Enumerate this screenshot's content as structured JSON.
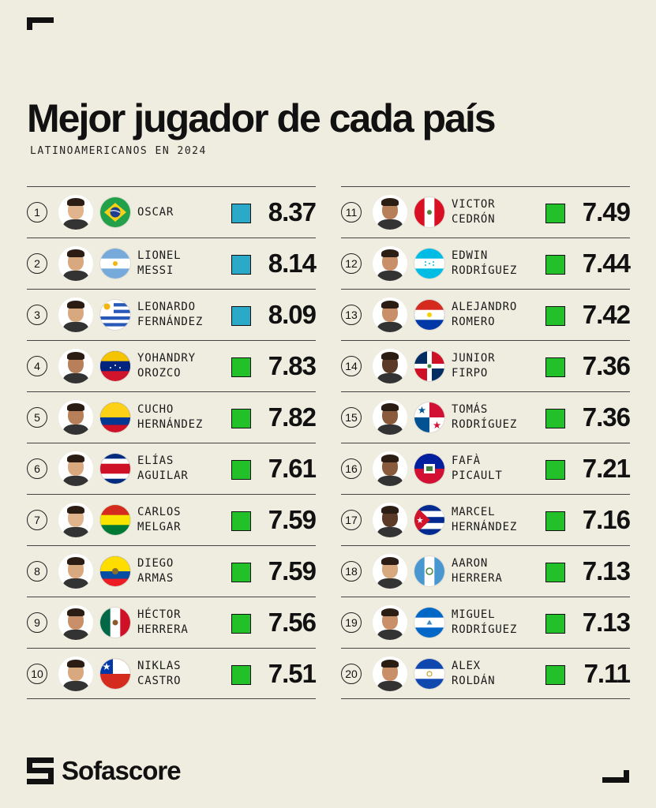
{
  "header": {
    "title": "Mejor jugador de cada país",
    "subtitle": "LATINOAMERICANOS EN 2024"
  },
  "brand": {
    "name": "Sofascore"
  },
  "colors": {
    "background": "#efece0",
    "rating_blue": "#2aa9c9",
    "rating_green": "#22c12a"
  },
  "players": [
    {
      "rank": "1",
      "name": "OSCAR",
      "rating": "8.37",
      "tier": "blue",
      "flag": "brazil-flag-icon",
      "country": "brazil"
    },
    {
      "rank": "2",
      "name": "LIONEL\nMESSI",
      "rating": "8.14",
      "tier": "blue",
      "flag": "argentina-flag-icon",
      "country": "argentina"
    },
    {
      "rank": "3",
      "name": "LEONARDO\nFERNÁNDEZ",
      "rating": "8.09",
      "tier": "blue",
      "flag": "uruguay-flag-icon",
      "country": "uruguay"
    },
    {
      "rank": "4",
      "name": "YOHANDRY\nOROZCO",
      "rating": "7.83",
      "tier": "green",
      "flag": "venezuela-flag-icon",
      "country": "venezuela"
    },
    {
      "rank": "5",
      "name": "CUCHO\nHERNÁNDEZ",
      "rating": "7.82",
      "tier": "green",
      "flag": "colombia-flag-icon",
      "country": "colombia"
    },
    {
      "rank": "6",
      "name": "ELÍAS\nAGUILAR",
      "rating": "7.61",
      "tier": "green",
      "flag": "costa-rica-flag-icon",
      "country": "costarica"
    },
    {
      "rank": "7",
      "name": "CARLOS\nMELGAR",
      "rating": "7.59",
      "tier": "green",
      "flag": "bolivia-flag-icon",
      "country": "bolivia"
    },
    {
      "rank": "8",
      "name": "DIEGO\nARMAS",
      "rating": "7.59",
      "tier": "green",
      "flag": "ecuador-flag-icon",
      "country": "ecuador"
    },
    {
      "rank": "9",
      "name": "HÉCTOR\nHERRERA",
      "rating": "7.56",
      "tier": "green",
      "flag": "mexico-flag-icon",
      "country": "mexico"
    },
    {
      "rank": "10",
      "name": "NIKLAS\nCASTRO",
      "rating": "7.51",
      "tier": "green",
      "flag": "chile-flag-icon",
      "country": "chile"
    },
    {
      "rank": "11",
      "name": "VICTOR\nCEDRÓN",
      "rating": "7.49",
      "tier": "green",
      "flag": "peru-flag-icon",
      "country": "peru"
    },
    {
      "rank": "12",
      "name": "EDWIN\nRODRÍGUEZ",
      "rating": "7.44",
      "tier": "green",
      "flag": "honduras-flag-icon",
      "country": "honduras"
    },
    {
      "rank": "13",
      "name": "ALEJANDRO\nROMERO",
      "rating": "7.42",
      "tier": "green",
      "flag": "paraguay-flag-icon",
      "country": "paraguay"
    },
    {
      "rank": "14",
      "name": "JUNIOR\nFIRPO",
      "rating": "7.36",
      "tier": "green",
      "flag": "dominican-republic-flag-icon",
      "country": "dominican"
    },
    {
      "rank": "15",
      "name": "TOMÁS\nRODRÍGUEZ",
      "rating": "7.36",
      "tier": "green",
      "flag": "panama-flag-icon",
      "country": "panama"
    },
    {
      "rank": "16",
      "name": "FAFÀ\nPICAULT",
      "rating": "7.21",
      "tier": "green",
      "flag": "haiti-flag-icon",
      "country": "haiti"
    },
    {
      "rank": "17",
      "name": "MARCEL\nHERNÁNDEZ",
      "rating": "7.16",
      "tier": "green",
      "flag": "cuba-flag-icon",
      "country": "cuba"
    },
    {
      "rank": "18",
      "name": "AARON\nHERRERA",
      "rating": "7.13",
      "tier": "green",
      "flag": "guatemala-flag-icon",
      "country": "guatemala"
    },
    {
      "rank": "19",
      "name": "MIGUEL\nRODRÍGUEZ",
      "rating": "7.13",
      "tier": "green",
      "flag": "nicaragua-flag-icon",
      "country": "nicaragua"
    },
    {
      "rank": "20",
      "name": "ALEX\nROLDÁN",
      "rating": "7.11",
      "tier": "green",
      "flag": "el-salvador-flag-icon",
      "country": "elsalvador"
    }
  ]
}
